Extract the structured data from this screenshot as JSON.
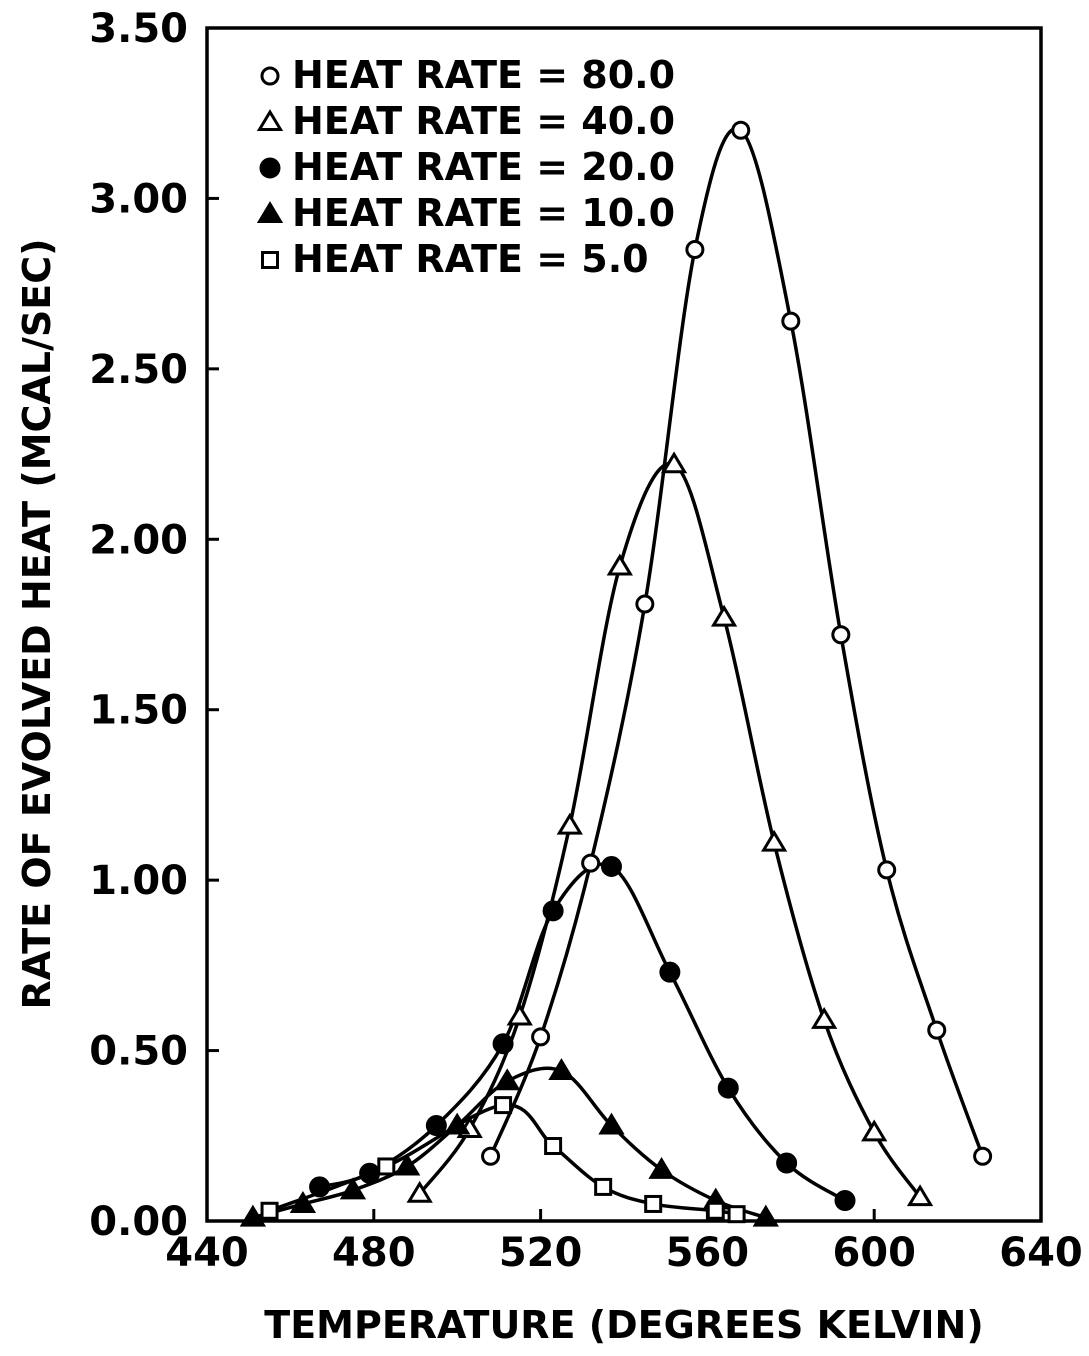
{
  "chart_data": {
    "type": "line",
    "title": "",
    "xlabel": "TEMPERATURE (DEGREES KELVIN)",
    "ylabel": "RATE OF EVOLVED HEAT (MCAL/SEC)",
    "xlim": [
      440,
      640
    ],
    "ylim": [
      0.0,
      3.5
    ],
    "xticks": [
      "440",
      "480",
      "520",
      "560",
      "600",
      "640"
    ],
    "yticks": [
      "0.00",
      "0.50",
      "1.00",
      "1.50",
      "2.00",
      "2.50",
      "3.00",
      "3.50"
    ],
    "grid": false,
    "legend_position": "top-left",
    "series": [
      {
        "name": "HEAT RATE = 80.0",
        "marker": "open-circle",
        "x": [
          508,
          520,
          532,
          545,
          557,
          568,
          580,
          592,
          603,
          615,
          626
        ],
        "y": [
          0.19,
          0.54,
          1.05,
          1.81,
          2.85,
          3.2,
          2.64,
          1.72,
          1.03,
          0.56,
          0.19
        ]
      },
      {
        "name": "HEAT RATE = 40.0",
        "marker": "open-triangle",
        "x": [
          491,
          503,
          515,
          527,
          539,
          552,
          564,
          576,
          588,
          600,
          611
        ],
        "y": [
          0.08,
          0.27,
          0.6,
          1.16,
          1.92,
          2.22,
          1.77,
          1.11,
          0.59,
          0.26,
          0.07
        ]
      },
      {
        "name": "HEAT RATE = 20.0",
        "marker": "filled-circle",
        "x": [
          467,
          479,
          495,
          511,
          523,
          537,
          551,
          565,
          579,
          593
        ],
        "y": [
          0.1,
          0.14,
          0.28,
          0.52,
          0.91,
          1.04,
          0.73,
          0.39,
          0.17,
          0.06
        ]
      },
      {
        "name": "HEAT RATE = 10.0",
        "marker": "filled-triangle",
        "x": [
          451,
          463,
          475,
          488,
          500,
          512,
          525,
          537,
          549,
          562,
          574
        ],
        "y": [
          0.01,
          0.05,
          0.09,
          0.16,
          0.28,
          0.41,
          0.44,
          0.28,
          0.15,
          0.06,
          0.01
        ]
      },
      {
        "name": "HEAT RATE = 5.0",
        "marker": "open-square",
        "x": [
          455,
          483,
          511,
          523,
          535,
          547,
          562,
          567
        ],
        "y": [
          0.03,
          0.16,
          0.34,
          0.22,
          0.1,
          0.05,
          0.03,
          0.02
        ]
      }
    ]
  }
}
